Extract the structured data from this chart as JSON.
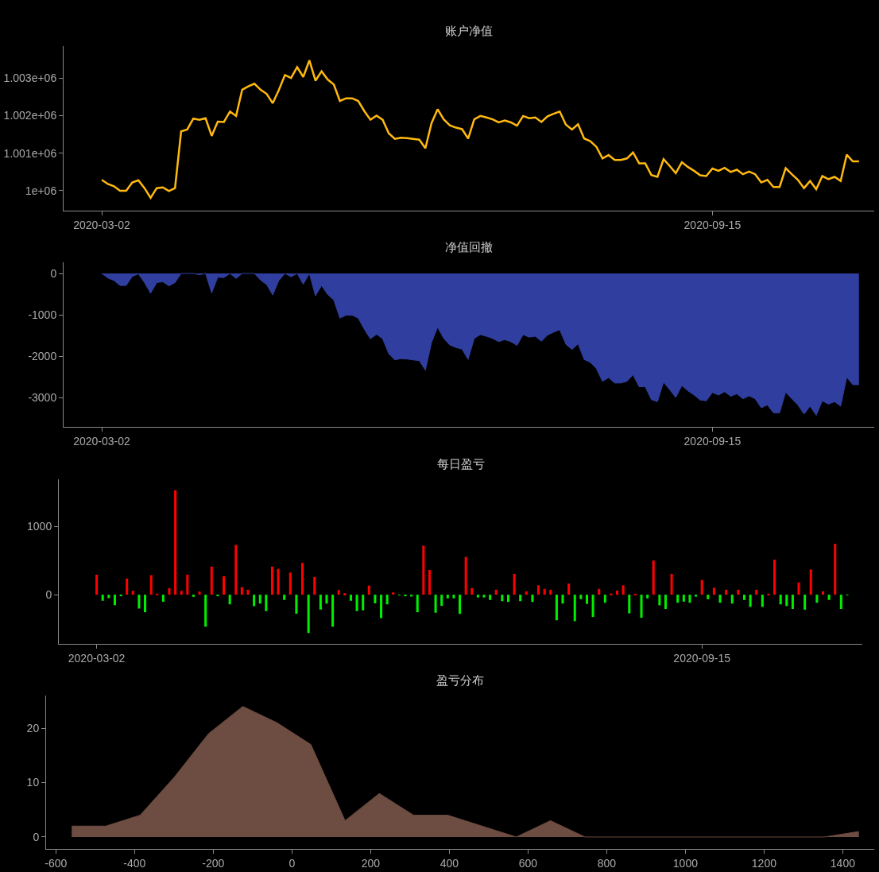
{
  "chart_data": [
    {
      "type": "line",
      "title": "账户净值",
      "categories": [
        "2020-03-02",
        null,
        null,
        null,
        null,
        null,
        null,
        null,
        null,
        null,
        null,
        null,
        null,
        null,
        null,
        null,
        null,
        null,
        null,
        null,
        null,
        null,
        null,
        null,
        null,
        null,
        null,
        null,
        null,
        null,
        null,
        null,
        null,
        null,
        null,
        null,
        null,
        null,
        null,
        null,
        null,
        null,
        null,
        null,
        null,
        null,
        null,
        null,
        null,
        null,
        null,
        null,
        null,
        null,
        null,
        null,
        null,
        null,
        null,
        null,
        null,
        null,
        null,
        null,
        null,
        null,
        null,
        null,
        null,
        null,
        null,
        null,
        null,
        null,
        null,
        null,
        null,
        null,
        null,
        null,
        null,
        null,
        null,
        null,
        null,
        null,
        null,
        null,
        null,
        null,
        null,
        null,
        null,
        null,
        null,
        null,
        null,
        null,
        null,
        null,
        "2020-09-15",
        null,
        null,
        null,
        null,
        null,
        null,
        null,
        null,
        null,
        null,
        null,
        null,
        null,
        null,
        null,
        null,
        null,
        null,
        null,
        null,
        null,
        null,
        null,
        null
      ],
      "series": [
        {
          "color": "#ffb90f",
          "values": [
            1000290,
            1000180,
            1000120,
            1000000,
            1000000,
            1000220,
            1000280,
            1000070,
            999810,
            1000070,
            1000090,
            999990,
            1000070,
            1001580,
            1001630,
            1001920,
            1001890,
            1001930,
            1001460,
            1001840,
            1001830,
            1002110,
            1001990,
            1002690,
            1002780,
            1002850,
            1002690,
            1002580,
            1002330,
            1002680,
            1003080,
            1003000,
            1003290,
            1003030,
            1003470,
            1002930,
            1003180,
            1002960,
            1002830,
            1002390,
            1002460,
            1002460,
            1002390,
            1002120,
            1001890,
            1002000,
            1001890,
            1001530,
            1001380,
            1001410,
            1001400,
            1001380,
            1001360,
            1001130,
            1001800,
            1002170,
            1001900,
            1001740,
            1001680,
            1001640,
            1001390,
            1001900,
            1001990,
            1001950,
            1001900,
            1001820,
            1001870,
            1001820,
            1001730,
            1001990,
            1001930,
            1001950,
            1001830,
            1001980,
            1002050,
            1002110,
            1001760,
            1001630,
            1001770,
            1001390,
            1001320,
            1001170,
            1000860,
            1000950,
            1000820,
            1000820,
            1000860,
            1001020,
            1000730,
            1000730,
            1000420,
            1000370,
            1000840,
            1000660,
            1000470,
            1000760,
            1000630,
            1000530,
            1000410,
            1000390,
            1000590,
            1000530,
            1000610,
            1000500,
            1000560,
            1000440,
            1000510,
            1000440,
            1000220,
            1000290,
            1000100,
            1000100,
            1000600,
            1000440,
            1000290,
            1000070,
            1000260,
            1000040,
            1000390,
            1000310,
            1000370,
            1000260,
            1000960,
            1000780,
            1000780
          ]
        }
      ],
      "ylim": [
        999470,
        1003850
      ],
      "yticks": [
        {
          "value": 1000000,
          "label": "1e+06"
        },
        {
          "value": 1001000,
          "label": "1.001e+06"
        },
        {
          "value": 1002000,
          "label": "1.002e+06"
        },
        {
          "value": 1003000,
          "label": "1.003e+06"
        }
      ]
    },
    {
      "type": "area",
      "title": "净值回撤",
      "categories": [
        "2020-03-02",
        null,
        null,
        null,
        null,
        null,
        null,
        null,
        null,
        null,
        null,
        null,
        null,
        null,
        null,
        null,
        null,
        null,
        null,
        null,
        null,
        null,
        null,
        null,
        null,
        null,
        null,
        null,
        null,
        null,
        null,
        null,
        null,
        null,
        null,
        null,
        null,
        null,
        null,
        null,
        null,
        null,
        null,
        null,
        null,
        null,
        null,
        null,
        null,
        null,
        null,
        null,
        null,
        null,
        null,
        null,
        null,
        null,
        null,
        null,
        null,
        null,
        null,
        null,
        null,
        null,
        null,
        null,
        null,
        null,
        null,
        null,
        null,
        null,
        null,
        null,
        null,
        null,
        null,
        null,
        null,
        null,
        null,
        null,
        null,
        null,
        null,
        null,
        null,
        null,
        null,
        null,
        null,
        null,
        null,
        null,
        null,
        null,
        null,
        null,
        "2020-09-15",
        null,
        null,
        null,
        null,
        null,
        null,
        null,
        null,
        null,
        null,
        null,
        null,
        null,
        null,
        null,
        null,
        null,
        null,
        null,
        null,
        null,
        null,
        null,
        null
      ],
      "series": [
        {
          "color": "#303f9f",
          "values": [
            0,
            -110,
            -170,
            -290,
            -290,
            -70,
            -10,
            -220,
            -480,
            -220,
            -200,
            -300,
            -220,
            0,
            0,
            0,
            -30,
            0,
            -470,
            -90,
            -100,
            0,
            -120,
            0,
            0,
            0,
            -160,
            -270,
            -520,
            -170,
            0,
            -80,
            0,
            -260,
            0,
            -540,
            -290,
            -510,
            -640,
            -1080,
            -1010,
            -1010,
            -1080,
            -1350,
            -1580,
            -1470,
            -1580,
            -1940,
            -2090,
            -2060,
            -2070,
            -2090,
            -2110,
            -2340,
            -1670,
            -1300,
            -1570,
            -1730,
            -1790,
            -1830,
            -2080,
            -1570,
            -1480,
            -1520,
            -1570,
            -1650,
            -1600,
            -1650,
            -1740,
            -1480,
            -1540,
            -1520,
            -1640,
            -1490,
            -1420,
            -1360,
            -1710,
            -1840,
            -1700,
            -2080,
            -2150,
            -2300,
            -2610,
            -2520,
            -2650,
            -2650,
            -2610,
            -2450,
            -2740,
            -2740,
            -3050,
            -3100,
            -2630,
            -2810,
            -3000,
            -2710,
            -2840,
            -2940,
            -3060,
            -3080,
            -2880,
            -2940,
            -2860,
            -2970,
            -2910,
            -3030,
            -2960,
            -3030,
            -3250,
            -3180,
            -3370,
            -3370,
            -2870,
            -3030,
            -3180,
            -3400,
            -3210,
            -3430,
            -3080,
            -3160,
            -3100,
            -3210,
            -2510,
            -2690,
            -2690
          ]
        }
      ],
      "ylim": [
        -3710,
        270
      ],
      "yticks": [
        0,
        -1000,
        -2000,
        -3000
      ]
    },
    {
      "type": "bar",
      "title": "每日盈亏",
      "categories": [
        "2020-03-02",
        null,
        null,
        null,
        null,
        null,
        null,
        null,
        null,
        null,
        null,
        null,
        null,
        null,
        null,
        null,
        null,
        null,
        null,
        null,
        null,
        null,
        null,
        null,
        null,
        null,
        null,
        null,
        null,
        null,
        null,
        null,
        null,
        null,
        null,
        null,
        null,
        null,
        null,
        null,
        null,
        null,
        null,
        null,
        null,
        null,
        null,
        null,
        null,
        null,
        null,
        null,
        null,
        null,
        null,
        null,
        null,
        null,
        null,
        null,
        null,
        null,
        null,
        null,
        null,
        null,
        null,
        null,
        null,
        null,
        null,
        null,
        null,
        null,
        null,
        null,
        null,
        null,
        null,
        null,
        null,
        null,
        null,
        null,
        null,
        null,
        null,
        null,
        null,
        null,
        null,
        null,
        null,
        null,
        null,
        null,
        null,
        null,
        null,
        null,
        "2020-09-15",
        null,
        null,
        null,
        null,
        null,
        null,
        null,
        null,
        null,
        null,
        null,
        null,
        null,
        null,
        null,
        null,
        null,
        null,
        null,
        null,
        null,
        null,
        null,
        null
      ],
      "values": [
        294,
        -88,
        -50,
        -153,
        -19,
        237,
        57,
        -202,
        -256,
        286,
        11,
        -103,
        95,
        1530,
        57,
        294,
        -31,
        46,
        -469,
        412,
        -15,
        271,
        -141,
        729,
        111,
        73,
        -168,
        -130,
        -240,
        412,
        378,
        -76,
        324,
        -279,
        466,
        -561,
        260,
        -218,
        -130,
        -469,
        69,
        23,
        -88,
        -240,
        -229,
        134,
        -126,
        -344,
        -141,
        34,
        -8,
        -15,
        -27,
        -256,
        718,
        363,
        -263,
        -164,
        -53,
        -53,
        -281,
        553,
        98,
        -41,
        -41,
        -77,
        73,
        -94,
        -106,
        305,
        -94,
        49,
        -106,
        138,
        85,
        73,
        -374,
        -130,
        163,
        -387,
        -65,
        -134,
        -326,
        85,
        -118,
        16,
        61,
        138,
        -273,
        8,
        -338,
        -53,
        501,
        -155,
        -208,
        305,
        -118,
        -102,
        -118,
        -28,
        216,
        -65,
        102,
        -118,
        73,
        -130,
        73,
        -77,
        -179,
        73,
        -179,
        8,
        513,
        -142,
        -167,
        -208,
        179,
        -220,
        370,
        -118,
        49,
        -77,
        745,
        -208,
        -8
      ],
      "colors": [
        "#ff0000",
        "#00ee00",
        "#00ee00",
        "#00ee00",
        "#00ee00",
        "#ff0000",
        "#ff0000",
        "#00ee00",
        "#00ee00",
        "#ff0000",
        "#ff0000",
        "#00ee00",
        "#ff0000",
        "#ff0000",
        "#ff0000",
        "#ff0000",
        "#00ee00",
        "#ff0000",
        "#00ee00",
        "#ff0000",
        "#00ee00",
        "#ff0000",
        "#00ee00",
        "#ff0000",
        "#ff0000",
        "#ff0000",
        "#00ee00",
        "#00ee00",
        "#00ee00",
        "#ff0000",
        "#ff0000",
        "#00ee00",
        "#ff0000",
        "#00ee00",
        "#ff0000",
        "#00ee00",
        "#ff0000",
        "#00ee00",
        "#00ee00",
        "#00ee00",
        "#ff0000",
        "#ff0000",
        "#00ee00",
        "#00ee00",
        "#00ee00",
        "#ff0000",
        "#00ee00",
        "#00ee00",
        "#00ee00",
        "#ff0000",
        "#00ee00",
        "#00ee00",
        "#00ee00",
        "#00ee00",
        "#ff0000",
        "#ff0000",
        "#00ee00",
        "#00ee00",
        "#00ee00",
        "#00ee00",
        "#00ee00",
        "#ff0000",
        "#ff0000",
        "#00ee00",
        "#00ee00",
        "#00ee00",
        "#ff0000",
        "#00ee00",
        "#00ee00",
        "#ff0000",
        "#00ee00",
        "#ff0000",
        "#00ee00",
        "#ff0000",
        "#ff0000",
        "#ff0000",
        "#00ee00",
        "#00ee00",
        "#ff0000",
        "#00ee00",
        "#00ee00",
        "#00ee00",
        "#00ee00",
        "#ff0000",
        "#00ee00",
        "#ff0000",
        "#ff0000",
        "#ff0000",
        "#00ee00",
        "#ff0000",
        "#00ee00",
        "#00ee00",
        "#ff0000",
        "#00ee00",
        "#00ee00",
        "#ff0000",
        "#00ee00",
        "#00ee00",
        "#00ee00",
        "#00ee00",
        "#ff0000",
        "#00ee00",
        "#ff0000",
        "#00ee00",
        "#ff0000",
        "#00ee00",
        "#ff0000",
        "#00ee00",
        "#00ee00",
        "#ff0000",
        "#00ee00",
        "#ff0000",
        "#ff0000",
        "#00ee00",
        "#00ee00",
        "#00ee00",
        "#ff0000",
        "#00ee00",
        "#ff0000",
        "#00ee00",
        "#ff0000",
        "#00ee00",
        "#ff0000",
        "#00ee00",
        "#00ee00"
      ],
      "ylim": [
        -720,
        1690
      ],
      "yticks": [
        0,
        1000
      ]
    },
    {
      "type": "area",
      "title": "盈亏分布",
      "x": [
        -560,
        -473,
        -386,
        -299,
        -212,
        -125,
        -38,
        48,
        135,
        222,
        309,
        396,
        483,
        570,
        657,
        745,
        832,
        919,
        1006,
        1093,
        1180,
        1267,
        1354,
        1441
      ],
      "series": [
        {
          "color": "#6d4c41",
          "values": [
            2,
            2,
            4,
            11,
            19,
            24,
            21,
            17,
            3,
            8,
            4,
            4,
            2,
            0,
            3,
            0,
            0,
            0,
            0,
            0,
            0,
            0,
            0,
            1
          ]
        }
      ],
      "xlim": [
        -625,
        1480
      ],
      "xticks": [
        -600,
        -400,
        -200,
        0,
        200,
        400,
        600,
        800,
        1000,
        1200,
        1400
      ],
      "ylim": [
        -2.2,
        26
      ],
      "yticks": [
        0,
        10,
        20
      ]
    }
  ]
}
